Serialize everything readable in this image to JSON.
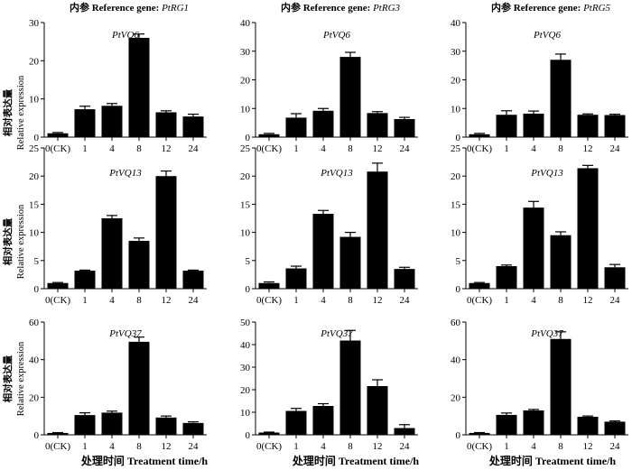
{
  "figure": {
    "ylabel_cn": "相对表达量",
    "ylabel_en": "Relative expression",
    "xlabel": "处理时间 Treatment time/h",
    "colors": {
      "bar": "#000000",
      "axis": "#000000",
      "background": "#ffffff"
    }
  },
  "chart_data": [
    {
      "type": "bar",
      "header": "内参 Reference gene:",
      "ref_gene": "PtRG1",
      "title": "PtVQ6",
      "categories": [
        "0(CK)",
        "1",
        "4",
        "8",
        "12",
        "24"
      ],
      "values": [
        1.0,
        7.3,
        8.2,
        26.0,
        6.5,
        5.4
      ],
      "errors": [
        0.2,
        0.8,
        0.6,
        1.0,
        0.4,
        0.6
      ],
      "ylim": [
        0,
        30
      ],
      "yticks": [
        "0",
        "10",
        "20",
        "30"
      ]
    },
    {
      "type": "bar",
      "header": "内参 Reference gene:",
      "ref_gene": "PtRG3",
      "title": "PtVQ6",
      "categories": [
        "0(CK)",
        "1",
        "4",
        "8",
        "12",
        "24"
      ],
      "values": [
        1.0,
        6.8,
        9.2,
        28.0,
        8.4,
        6.3
      ],
      "errors": [
        0.3,
        1.4,
        0.8,
        1.6,
        0.5,
        0.6
      ],
      "ylim": [
        0,
        40
      ],
      "yticks": [
        "0",
        "10",
        "20",
        "30",
        "40"
      ]
    },
    {
      "type": "bar",
      "header": "内参 Reference gene:",
      "ref_gene": "PtRG5",
      "title": "PtVQ6",
      "categories": [
        "0(CK)",
        "1",
        "4",
        "8",
        "12",
        "24"
      ],
      "values": [
        1.0,
        7.8,
        8.2,
        27.0,
        7.8,
        7.7
      ],
      "errors": [
        0.3,
        1.4,
        0.9,
        2.0,
        0.3,
        0.3
      ],
      "ylim": [
        0,
        40
      ],
      "yticks": [
        "0",
        "10",
        "20",
        "30",
        "40"
      ]
    },
    {
      "type": "bar",
      "title": "PtVQ13",
      "categories": [
        "0(CK)",
        "1",
        "4",
        "8",
        "12",
        "24"
      ],
      "values": [
        1.0,
        3.2,
        12.5,
        8.5,
        20.0,
        3.2
      ],
      "errors": [
        0.1,
        0.1,
        0.5,
        0.5,
        0.9,
        0.1
      ],
      "ylim": [
        0,
        25
      ],
      "yticks": [
        "0",
        "5",
        "10",
        "15",
        "20",
        "25"
      ]
    },
    {
      "type": "bar",
      "title": "PtVQ13",
      "categories": [
        "0(CK)",
        "1",
        "4",
        "8",
        "12",
        "24"
      ],
      "values": [
        1.0,
        3.6,
        13.3,
        9.2,
        20.8,
        3.5
      ],
      "errors": [
        0.2,
        0.4,
        0.6,
        0.8,
        1.5,
        0.3
      ],
      "ylim": [
        0,
        25
      ],
      "yticks": [
        "0",
        "5",
        "10",
        "15",
        "20",
        "25"
      ]
    },
    {
      "type": "bar",
      "title": "PtVQ13",
      "categories": [
        "0(CK)",
        "1",
        "4",
        "8",
        "12",
        "24"
      ],
      "values": [
        1.0,
        4.0,
        14.4,
        9.5,
        21.4,
        3.8
      ],
      "errors": [
        0.1,
        0.2,
        1.1,
        0.6,
        0.5,
        0.5
      ],
      "ylim": [
        0,
        25
      ],
      "yticks": [
        "0",
        "5",
        "10",
        "15",
        "20",
        "25"
      ]
    },
    {
      "type": "bar",
      "title": "PtVQ37",
      "categories": [
        "0(CK)",
        "1",
        "4",
        "8",
        "12",
        "24"
      ],
      "values": [
        1.0,
        10.5,
        11.8,
        49.5,
        9.2,
        6.3
      ],
      "errors": [
        0.2,
        1.2,
        0.8,
        2.5,
        0.8,
        0.6
      ],
      "ylim": [
        0,
        60
      ],
      "yticks": [
        "0",
        "20",
        "40",
        "60"
      ]
    },
    {
      "type": "bar",
      "title": "PtVQ37",
      "categories": [
        "0(CK)",
        "1",
        "4",
        "8",
        "12",
        "24"
      ],
      "values": [
        1.0,
        10.6,
        12.8,
        41.8,
        21.6,
        3.0
      ],
      "errors": [
        0.2,
        1.1,
        1.0,
        4.5,
        2.8,
        1.5
      ],
      "ylim": [
        0,
        50
      ],
      "yticks": [
        "0",
        "10",
        "20",
        "30",
        "40",
        "50"
      ]
    },
    {
      "type": "bar",
      "title": "PtVQ37",
      "categories": [
        "0(CK)",
        "1",
        "4",
        "8",
        "12",
        "24"
      ],
      "values": [
        1.0,
        10.6,
        13.0,
        51.0,
        9.6,
        7.0
      ],
      "errors": [
        0.2,
        1.0,
        0.5,
        3.8,
        0.4,
        0.4
      ],
      "ylim": [
        0,
        60
      ],
      "yticks": [
        "0",
        "20",
        "40",
        "60"
      ]
    }
  ]
}
